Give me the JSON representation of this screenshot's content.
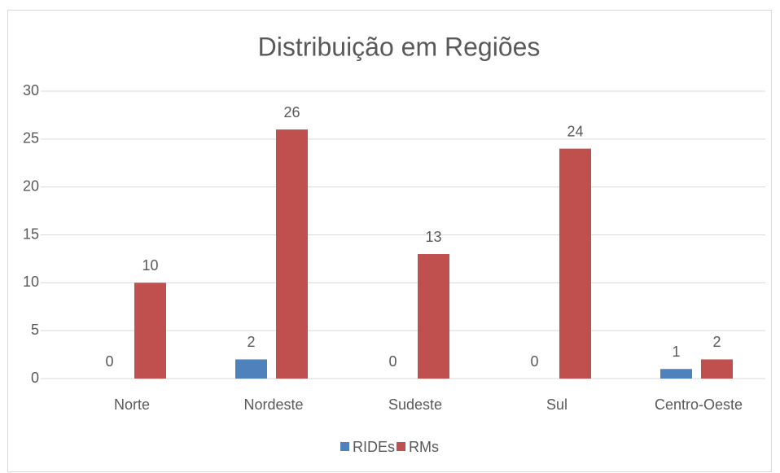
{
  "chart_data": {
    "type": "bar",
    "title": "Distribuição em Regiões",
    "categories": [
      "Norte",
      "Nordeste",
      "Sudeste",
      "Sul",
      "Centro-Oeste"
    ],
    "series": [
      {
        "name": "RIDEs",
        "color": "#4f81bd",
        "values": [
          0,
          2,
          0,
          0,
          1
        ]
      },
      {
        "name": "RMs",
        "color": "#c0504d",
        "values": [
          10,
          26,
          13,
          24,
          2
        ]
      }
    ],
    "ylim": [
      0,
      30
    ],
    "yticks": [
      0,
      5,
      10,
      15,
      20,
      25,
      30
    ],
    "grid": true,
    "legend": "bottom"
  }
}
